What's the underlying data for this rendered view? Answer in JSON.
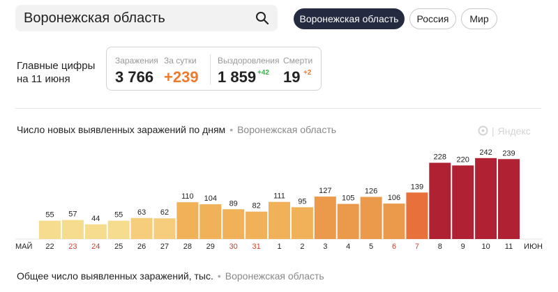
{
  "search": {
    "value": "Воронежская область"
  },
  "tabs": [
    {
      "label": "Воронежская область",
      "active": true
    },
    {
      "label": "Россия",
      "active": false
    },
    {
      "label": "Мир",
      "active": false
    }
  ],
  "key_figures": {
    "title_line1": "Главные цифры",
    "title_line2": "на 11 июня",
    "infections": {
      "label": "Заражения",
      "value": "3 766"
    },
    "per_day": {
      "label": "За сутки",
      "value": "+239"
    },
    "recovered": {
      "label": "Выздоровления",
      "value": "1 859",
      "delta": "+42"
    },
    "deaths": {
      "label": "Смерти",
      "value": "19",
      "delta": "+2"
    }
  },
  "chart_section": {
    "title": "Число новых выявленных заражений по дням",
    "separator": "•",
    "region": "Воронежская область",
    "watermark": "Яндекс",
    "watermark_sep": "|"
  },
  "chart_data": {
    "type": "bar",
    "categories": [
      "22",
      "23",
      "24",
      "25",
      "26",
      "27",
      "28",
      "29",
      "30",
      "31",
      "1",
      "2",
      "3",
      "4",
      "5",
      "6",
      "7",
      "8",
      "9",
      "10",
      "11"
    ],
    "values": [
      55,
      57,
      44,
      55,
      63,
      62,
      110,
      104,
      89,
      82,
      111,
      95,
      127,
      105,
      126,
      106,
      139,
      228,
      220,
      242,
      239
    ],
    "weekend": [
      false,
      true,
      true,
      false,
      false,
      false,
      false,
      false,
      true,
      true,
      false,
      false,
      false,
      false,
      false,
      true,
      true,
      false,
      false,
      false,
      false
    ],
    "colors": [
      "#f5dc8e",
      "#f5dc8e",
      "#f5dc8e",
      "#f5dc8e",
      "#f5cd7c",
      "#f5cd7c",
      "#f0b158",
      "#f0b158",
      "#f0b158",
      "#f0b158",
      "#f0b158",
      "#f0b158",
      "#eb9a4c",
      "#eb9a4c",
      "#eb9a4c",
      "#eb9a4c",
      "#e8703a",
      "#b02233",
      "#b02233",
      "#b02233",
      "#b02233"
    ],
    "month_start": "МАЙ",
    "month_end": "ИЮН",
    "ylim": [
      0,
      250
    ]
  },
  "total_section": {
    "title": "Общее число выявленных заражений, тыс.",
    "separator": "•",
    "region": "Воронежская область"
  }
}
